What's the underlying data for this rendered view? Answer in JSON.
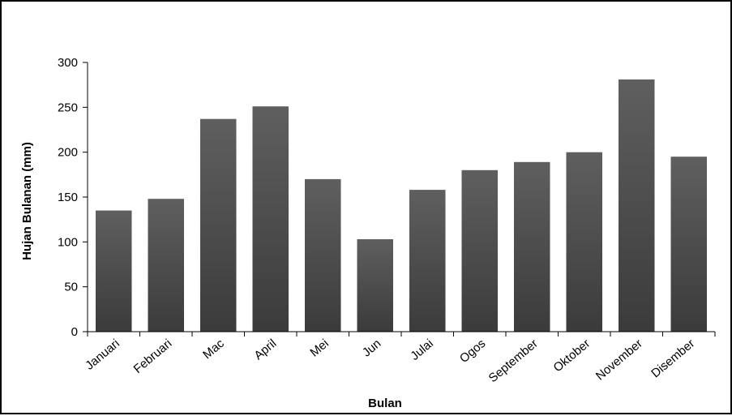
{
  "chart_data": {
    "type": "bar",
    "title": "",
    "xlabel": "Bulan",
    "ylabel": "Hujan Bulanan (mm)",
    "ylim": [
      0,
      300
    ],
    "yticks": [
      0,
      50,
      100,
      150,
      200,
      250,
      300
    ],
    "grid": false,
    "legend": "none",
    "categories": [
      "Januari",
      "Februari",
      "Mac",
      "April",
      "Mei",
      "Jun",
      "Julai",
      "Ogos",
      "September",
      "Oktober",
      "November",
      "Disember"
    ],
    "values": [
      135,
      148,
      237,
      251,
      170,
      103,
      158,
      180,
      189,
      200,
      281,
      195
    ],
    "colors": {
      "bar_top": "#5f5f5f",
      "bar_bottom": "#3b3b3b",
      "axis": "#000000"
    }
  }
}
